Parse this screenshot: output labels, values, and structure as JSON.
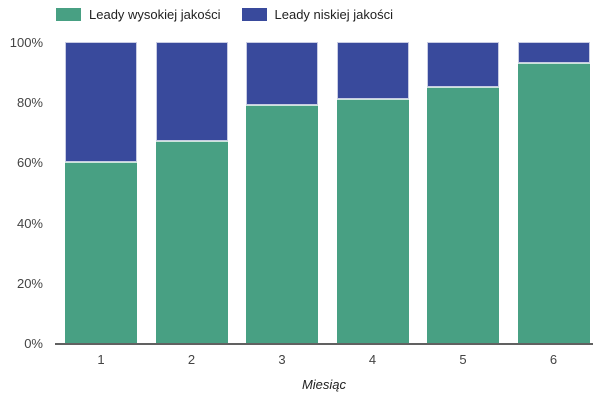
{
  "chart_data": {
    "type": "bar",
    "stacked": true,
    "percent_stacked": true,
    "categories": [
      "1",
      "2",
      "3",
      "4",
      "5",
      "6"
    ],
    "series": [
      {
        "name": "Leady wysokiej jakości",
        "color": "#48a083",
        "values": [
          60,
          67,
          79,
          81,
          85,
          93
        ]
      },
      {
        "name": "Leady niskiej jakości",
        "color": "#394a9c",
        "values": [
          40,
          33,
          21,
          19,
          15,
          7
        ]
      }
    ],
    "title": "",
    "xlabel": "Miesiąc",
    "ylabel": "",
    "ylim": [
      0,
      100
    ],
    "y_ticks": [
      "0%",
      "20%",
      "40%",
      "60%",
      "80%",
      "100%"
    ],
    "legend_position": "top",
    "grid": false,
    "colors": {
      "axis_line": "#616161",
      "tick_text": "#444444",
      "legend_text": "#222222",
      "background": "#ffffff",
      "segment_stroke": "#c9cfe6"
    }
  }
}
